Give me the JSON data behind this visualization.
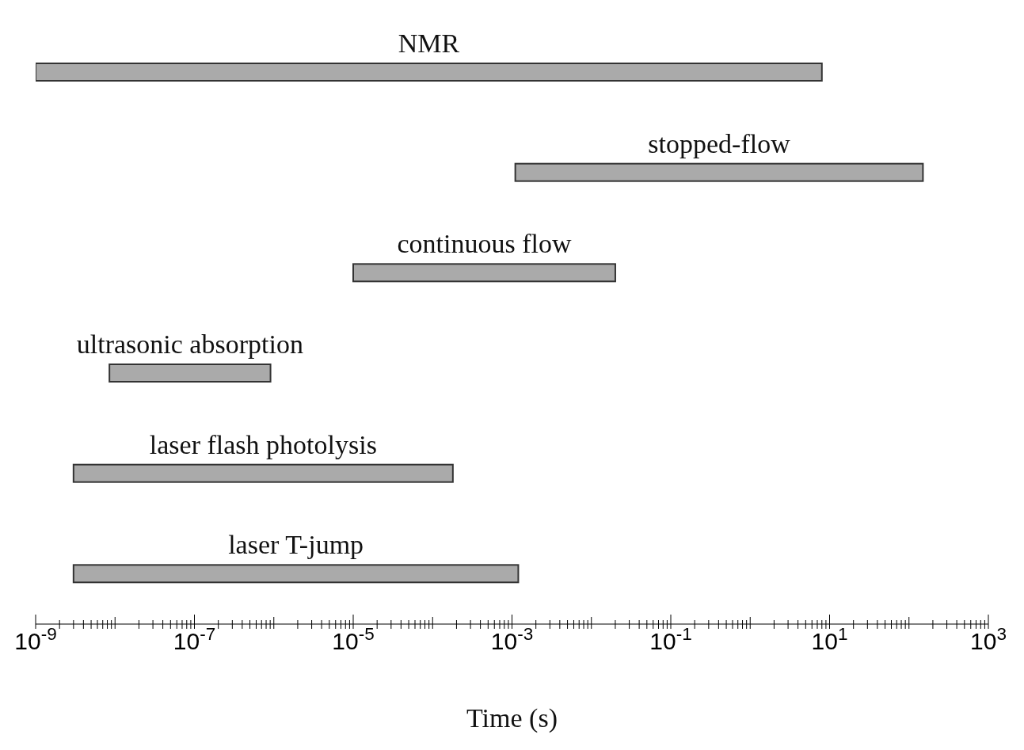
{
  "chart_data": {
    "type": "bar",
    "orientation": "horizontal",
    "log": "x",
    "xlabel": "Time (s)",
    "categories": [
      "NMR",
      "stopped-flow",
      "continuous flow",
      "ultrasonic absorption",
      "laser flash photolysis",
      "laser T-jump"
    ],
    "base": [
      1e-09,
      0.0011,
      1e-05,
      8.5e-09,
      3e-09,
      3e-09
    ],
    "values": [
      8,
      150,
      0.02,
      9e-07,
      0.00018,
      0.0012
    ],
    "color": "#aaaaaa",
    "xlim": [
      1e-09,
      1000
    ],
    "xticks": [
      {
        "value": 1e-09,
        "label": "10$^{-9}$"
      },
      {
        "value": 2e-09,
        "label": null
      },
      {
        "value": 3e-09,
        "label": null
      },
      {
        "value": 4e-09,
        "label": null
      },
      {
        "value": 5e-09,
        "label": null
      },
      {
        "value": 6e-09,
        "label": null
      },
      {
        "value": 7e-09,
        "label": null
      },
      {
        "value": 8e-09,
        "label": null
      },
      {
        "value": 9e-09,
        "label": null
      },
      {
        "value": 1e-08,
        "label": null
      },
      {
        "value": 2e-08,
        "label": null
      },
      {
        "value": 3e-08,
        "label": null
      },
      {
        "value": 4e-08,
        "label": null
      },
      {
        "value": 5e-08,
        "label": null
      },
      {
        "value": 6e-08,
        "label": null
      },
      {
        "value": 7e-08,
        "label": null
      },
      {
        "value": 8e-08,
        "label": null
      },
      {
        "value": 9e-08,
        "label": null
      },
      {
        "value": 1e-07,
        "label": "10$^{-7}$"
      },
      {
        "value": 2e-07,
        "label": null
      },
      {
        "value": 3e-07,
        "label": null
      },
      {
        "value": 4e-07,
        "label": null
      },
      {
        "value": 5e-07,
        "label": null
      },
      {
        "value": 6e-07,
        "label": null
      },
      {
        "value": 7e-07,
        "label": null
      },
      {
        "value": 8e-07,
        "label": null
      },
      {
        "value": 9e-07,
        "label": null
      },
      {
        "value": 1e-06,
        "label": null
      },
      {
        "value": 2e-06,
        "label": null
      },
      {
        "value": 3e-06,
        "label": null
      },
      {
        "value": 4e-06,
        "label": null
      },
      {
        "value": 5e-06,
        "label": null
      },
      {
        "value": 6e-06,
        "label": null
      },
      {
        "value": 7e-06,
        "label": null
      },
      {
        "value": 8e-06,
        "label": null
      },
      {
        "value": 9e-06,
        "label": null
      },
      {
        "value": 1e-05,
        "label": "10$^{-5}$"
      },
      {
        "value": 2e-05,
        "label": null
      },
      {
        "value": 3e-05,
        "label": null
      },
      {
        "value": 4e-05,
        "label": null
      },
      {
        "value": 5e-05,
        "label": null
      },
      {
        "value": 6e-05,
        "label": null
      },
      {
        "value": 7e-05,
        "label": null
      },
      {
        "value": 8e-05,
        "label": null
      },
      {
        "value": 9e-05,
        "label": null
      },
      {
        "value": 0.0001,
        "label": null
      },
      {
        "value": 0.0002,
        "label": null
      },
      {
        "value": 0.0003,
        "label": null
      },
      {
        "value": 0.0004,
        "label": null
      },
      {
        "value": 0.0005,
        "label": null
      },
      {
        "value": 0.0006,
        "label": null
      },
      {
        "value": 0.0007,
        "label": null
      },
      {
        "value": 0.0008,
        "label": null
      },
      {
        "value": 0.0009,
        "label": null
      },
      {
        "value": 0.001,
        "label": "10$^{-3}$"
      },
      {
        "value": 0.002,
        "label": null
      },
      {
        "value": 0.003,
        "label": null
      },
      {
        "value": 0.004,
        "label": null
      },
      {
        "value": 0.005,
        "label": null
      },
      {
        "value": 0.006,
        "label": null
      },
      {
        "value": 0.007,
        "label": null
      },
      {
        "value": 0.008,
        "label": null
      },
      {
        "value": 0.009,
        "label": null
      },
      {
        "value": 0.01,
        "label": null
      },
      {
        "value": 0.02,
        "label": null
      },
      {
        "value": 0.03,
        "label": null
      },
      {
        "value": 0.04,
        "label": null
      },
      {
        "value": 0.05,
        "label": null
      },
      {
        "value": 0.06,
        "label": null
      },
      {
        "value": 0.07,
        "label": null
      },
      {
        "value": 0.08,
        "label": null
      },
      {
        "value": 0.09,
        "label": null
      },
      {
        "value": 0.1,
        "label": "10$^{-1}$"
      },
      {
        "value": 0.2,
        "label": null
      },
      {
        "value": 0.3,
        "label": null
      },
      {
        "value": 0.4,
        "label": null
      },
      {
        "value": 0.5,
        "label": null
      },
      {
        "value": 0.6,
        "label": null
      },
      {
        "value": 0.7,
        "label": null
      },
      {
        "value": 0.8,
        "label": null
      },
      {
        "value": 0.9,
        "label": null
      },
      {
        "value": 1,
        "label": null
      },
      {
        "value": 2,
        "label": null
      },
      {
        "value": 3,
        "label": null
      },
      {
        "value": 4,
        "label": null
      },
      {
        "value": 5,
        "label": null
      },
      {
        "value": 6,
        "label": null
      },
      {
        "value": 7,
        "label": null
      },
      {
        "value": 8,
        "label": null
      },
      {
        "value": 9,
        "label": null
      },
      {
        "value": 10,
        "label": "10$^{1}$"
      },
      {
        "value": 20,
        "label": null
      },
      {
        "value": 30,
        "label": null
      },
      {
        "value": 40,
        "label": null
      },
      {
        "value": 50,
        "label": null
      },
      {
        "value": 60,
        "label": null
      },
      {
        "value": 70,
        "label": null
      },
      {
        "value": 80,
        "label": null
      },
      {
        "value": 90,
        "label": null
      },
      {
        "value": 100,
        "label": null
      },
      {
        "value": 200,
        "label": null
      },
      {
        "value": 300,
        "label": null
      },
      {
        "value": 400,
        "label": null
      },
      {
        "value": 500,
        "label": null
      },
      {
        "value": 600,
        "label": null
      },
      {
        "value": 700,
        "label": null
      },
      {
        "value": 800,
        "label": null
      },
      {
        "value": 900,
        "label": null
      },
      {
        "value": 1000,
        "label": "10$^{3}$"
      }
    ]
  }
}
